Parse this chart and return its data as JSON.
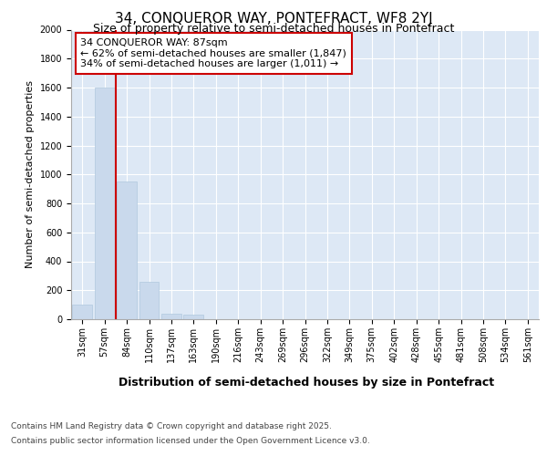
{
  "title1": "34, CONQUEROR WAY, PONTEFRACT, WF8 2YJ",
  "title2": "Size of property relative to semi-detached houses in Pontefract",
  "xlabel": "Distribution of semi-detached houses by size in Pontefract",
  "ylabel": "Number of semi-detached properties",
  "categories": [
    "31sqm",
    "57sqm",
    "84sqm",
    "110sqm",
    "137sqm",
    "163sqm",
    "190sqm",
    "216sqm",
    "243sqm",
    "269sqm",
    "296sqm",
    "322sqm",
    "349sqm",
    "375sqm",
    "402sqm",
    "428sqm",
    "455sqm",
    "481sqm",
    "508sqm",
    "534sqm",
    "561sqm"
  ],
  "values": [
    100,
    1600,
    950,
    260,
    35,
    30,
    0,
    0,
    0,
    0,
    0,
    0,
    0,
    0,
    0,
    0,
    0,
    0,
    0,
    0,
    0
  ],
  "bar_color": "#c9d9ec",
  "bar_edge_color": "#b0c8de",
  "vline_x": 1.5,
  "vline_color": "#cc0000",
  "ylim": [
    0,
    2000
  ],
  "yticks": [
    0,
    200,
    400,
    600,
    800,
    1000,
    1200,
    1400,
    1600,
    1800,
    2000
  ],
  "annotation_title": "34 CONQUEROR WAY: 87sqm",
  "annotation_line1": "← 62% of semi-detached houses are smaller (1,847)",
  "annotation_line2": "34% of semi-detached houses are larger (1,011) →",
  "annotation_box_color": "#cc0000",
  "footer_line1": "Contains HM Land Registry data © Crown copyright and database right 2025.",
  "footer_line2": "Contains public sector information licensed under the Open Government Licence v3.0.",
  "bg_color": "#ffffff",
  "plot_bg_color": "#dde8f5",
  "grid_color": "#ffffff",
  "title1_fontsize": 11,
  "title2_fontsize": 9,
  "ylabel_fontsize": 8,
  "xlabel_fontsize": 9,
  "tick_fontsize": 7,
  "footer_fontsize": 6.5,
  "ann_fontsize": 8
}
